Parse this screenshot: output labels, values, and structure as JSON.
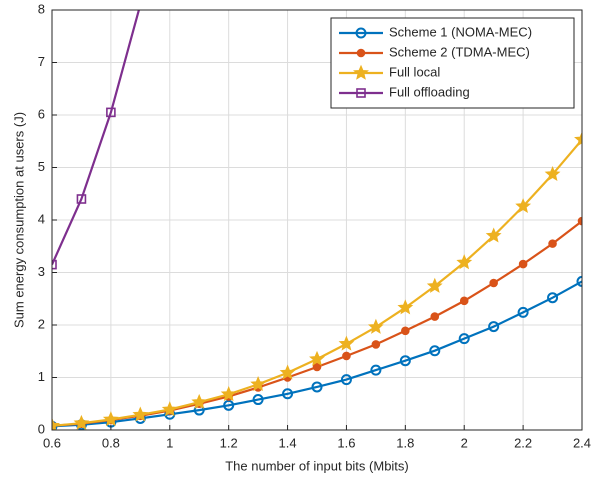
{
  "chart_data": {
    "type": "line",
    "x_label": "The number of input bits (Mbits)",
    "y_label": "Sum energy consumption at users (J)",
    "x": [
      0.6,
      0.7,
      0.8,
      0.9,
      1.0,
      1.1,
      1.2,
      1.3,
      1.4,
      1.5,
      1.6,
      1.7,
      1.8,
      1.9,
      2.0,
      2.1,
      2.2,
      2.3,
      2.4
    ],
    "series": [
      {
        "name": "Scheme 1 (NOMA-MEC)",
        "color": "#0072BD",
        "marker": "circle",
        "values": [
          0.07,
          0.1,
          0.15,
          0.22,
          0.3,
          0.38,
          0.47,
          0.58,
          0.69,
          0.82,
          0.96,
          1.14,
          1.32,
          1.51,
          1.74,
          1.97,
          2.24,
          2.52,
          2.83
        ]
      },
      {
        "name": "Scheme 2 (TDMA-MEC)",
        "color": "#D95319",
        "marker": "dot",
        "values": [
          0.08,
          0.12,
          0.19,
          0.27,
          0.37,
          0.5,
          0.64,
          0.81,
          1.0,
          1.2,
          1.41,
          1.63,
          1.89,
          2.16,
          2.46,
          2.8,
          3.16,
          3.55,
          3.98
        ]
      },
      {
        "name": "Full local",
        "color": "#EDB120",
        "marker": "star",
        "values": [
          0.08,
          0.13,
          0.2,
          0.29,
          0.39,
          0.53,
          0.68,
          0.87,
          1.09,
          1.35,
          1.64,
          1.96,
          2.33,
          2.74,
          3.19,
          3.7,
          4.26,
          4.87,
          5.53
        ]
      },
      {
        "name": "Full offloading",
        "color": "#7E2F8E",
        "marker": "square",
        "values": [
          3.15,
          4.4,
          6.05,
          8.1,
          null,
          null,
          null,
          null,
          null,
          null,
          null,
          null,
          null,
          null,
          null,
          null,
          null,
          null,
          null
        ]
      }
    ],
    "xlim": [
      0.6,
      2.4
    ],
    "xticks": [
      0.6,
      0.8,
      1,
      1.2,
      1.4,
      1.6,
      1.8,
      2,
      2.2,
      2.4
    ],
    "ylim": [
      0,
      8
    ],
    "yticks": [
      0,
      1,
      2,
      3,
      4,
      5,
      6,
      7,
      8
    ],
    "grid": true,
    "legend": "upper right"
  }
}
